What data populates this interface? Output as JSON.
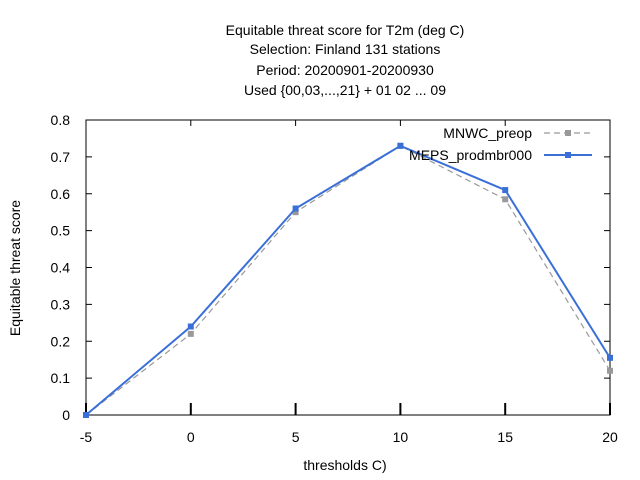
{
  "chart_data": {
    "type": "line",
    "title_lines": [
      "Equitable threat score  for T2m (deg C)",
      "Selection: Finland    131 stations",
      "Period: 20200901-20200930",
      "Used {00,03,...,21} + 01 02 ... 09"
    ],
    "xlabel": "thresholds C)",
    "ylabel": "Equitable threat score",
    "x": [
      -5,
      0,
      5,
      10,
      15,
      20
    ],
    "xlim": [
      -5,
      20
    ],
    "ylim": [
      0,
      0.8
    ],
    "x_ticks": [
      "-5",
      "0",
      "5",
      "10",
      "15",
      "20"
    ],
    "y_ticks": [
      "0",
      "0.1",
      "0.2",
      "0.3",
      "0.4",
      "0.5",
      "0.6",
      "0.7",
      "0.8"
    ],
    "legend_position": "top-right",
    "grid": false,
    "series": [
      {
        "name": "MNWC_preop",
        "color": "#999999",
        "style": "dashed",
        "values": [
          0.0,
          0.22,
          0.55,
          0.73,
          0.585,
          0.12
        ]
      },
      {
        "name": "MEPS_prodmbr000",
        "color": "#3a6fd8",
        "style": "solid",
        "values": [
          0.0,
          0.24,
          0.56,
          0.73,
          0.61,
          0.155
        ]
      }
    ]
  }
}
